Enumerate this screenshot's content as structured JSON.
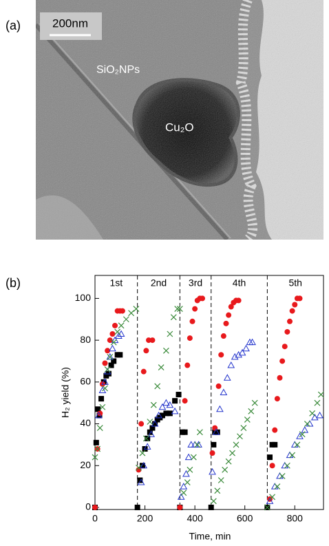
{
  "panel_a": {
    "label": "(a)",
    "scale_bar": "200nm",
    "labels": [
      "SiO₂NPs",
      "Cu₂O"
    ]
  },
  "chart_data": {
    "type": "scatter",
    "panel_label": "(b)",
    "x_label": "Time, min",
    "y_label": "H₂ yield (%)",
    "xlim": [
      0,
      915
    ],
    "ylim": [
      -1,
      111
    ],
    "xticks": [
      0,
      200,
      400,
      600,
      800
    ],
    "yticks": [
      0,
      20,
      40,
      60,
      80,
      100
    ],
    "cycle_boundaries": [
      170,
      340,
      465,
      690
    ],
    "cycles": [
      "1st",
      "2nd",
      "3rd",
      "4th",
      "5th"
    ],
    "series": [
      {
        "marker": "square",
        "color": "#000000",
        "x": [
          0,
          5,
          12,
          18,
          25,
          35,
          45,
          55,
          65,
          75,
          90,
          100,
          170,
          180,
          190,
          200,
          210,
          220,
          230,
          240,
          250,
          260,
          270,
          285,
          300,
          320,
          335,
          340,
          350,
          360,
          465,
          475,
          480,
          490,
          690,
          700,
          710,
          720
        ],
        "values": [
          0,
          31,
          47,
          44,
          52,
          60,
          63,
          64,
          68,
          70,
          73,
          73,
          0,
          13,
          20,
          28,
          33,
          36,
          38,
          40,
          42,
          43,
          44,
          45,
          45,
          51,
          54,
          0,
          36,
          36,
          0,
          30,
          36,
          36,
          0,
          24,
          30,
          30
        ]
      },
      {
        "marker": "circle",
        "color": "#e8191c",
        "x": [
          0,
          10,
          20,
          30,
          40,
          50,
          60,
          70,
          80,
          90,
          100,
          110,
          175,
          185,
          195,
          205,
          215,
          230,
          340,
          360,
          370,
          380,
          390,
          400,
          410,
          420,
          430,
          470,
          480,
          495,
          505,
          515,
          525,
          535,
          545,
          555,
          565,
          575,
          700,
          710,
          720,
          730,
          740,
          750,
          760,
          770,
          780,
          790,
          800,
          810,
          820
        ],
        "values": [
          0,
          28,
          45,
          59,
          69,
          75,
          80,
          83,
          87,
          94,
          94,
          94,
          18,
          40,
          65,
          75,
          80,
          80,
          0,
          51,
          68,
          81,
          89,
          95,
          99,
          100,
          100,
          26,
          38,
          58,
          73,
          82,
          88,
          92,
          96,
          98,
          99,
          99,
          4,
          20,
          37,
          52,
          62,
          70,
          77,
          84,
          89,
          94,
          97,
          100,
          100
        ]
      },
      {
        "marker": "triangle",
        "color": "#2233cc",
        "x": [
          15,
          30,
          40,
          50,
          60,
          70,
          80,
          95,
          105,
          185,
          195,
          210,
          225,
          240,
          255,
          270,
          285,
          300,
          320,
          345,
          355,
          365,
          375,
          385,
          400,
          415,
          470,
          485,
          500,
          515,
          530,
          545,
          560,
          575,
          590,
          605,
          620,
          630,
          700,
          720,
          740,
          760,
          780,
          800,
          820,
          840,
          860,
          880,
          900
        ],
        "values": [
          44,
          56,
          60,
          65,
          72,
          76,
          80,
          82,
          83,
          12,
          20,
          29,
          35,
          40,
          44,
          48,
          50,
          49,
          46,
          5,
          10,
          16,
          24,
          30,
          30,
          30,
          17,
          36,
          47,
          55,
          62,
          68,
          72,
          73,
          74,
          76,
          79,
          79,
          3,
          10,
          15,
          20,
          25,
          30,
          34,
          37,
          40,
          43,
          44
        ]
      },
      {
        "marker": "x",
        "color": "#3a8a3a",
        "x": [
          0,
          10,
          20,
          30,
          40,
          50,
          60,
          75,
          90,
          105,
          125,
          145,
          165,
          175,
          190,
          205,
          220,
          235,
          250,
          265,
          285,
          300,
          315,
          330,
          340,
          355,
          370,
          380,
          395,
          410,
          420,
          475,
          490,
          505,
          520,
          535,
          550,
          565,
          580,
          595,
          610,
          625,
          640,
          690,
          710,
          730,
          750,
          770,
          790,
          810,
          830,
          850,
          870,
          890,
          905
        ],
        "values": [
          24,
          28,
          38,
          48,
          57,
          66,
          72,
          79,
          84,
          87,
          90,
          93,
          95,
          19,
          26,
          33,
          41,
          49,
          58,
          67,
          75,
          83,
          91,
          95,
          95,
          7,
          12,
          18,
          24,
          30,
          36,
          3,
          8,
          13,
          18,
          22,
          26,
          30,
          34,
          38,
          42,
          46,
          50,
          0,
          5,
          10,
          15,
          20,
          25,
          30,
          35,
          40,
          45,
          50,
          54
        ]
      }
    ]
  }
}
